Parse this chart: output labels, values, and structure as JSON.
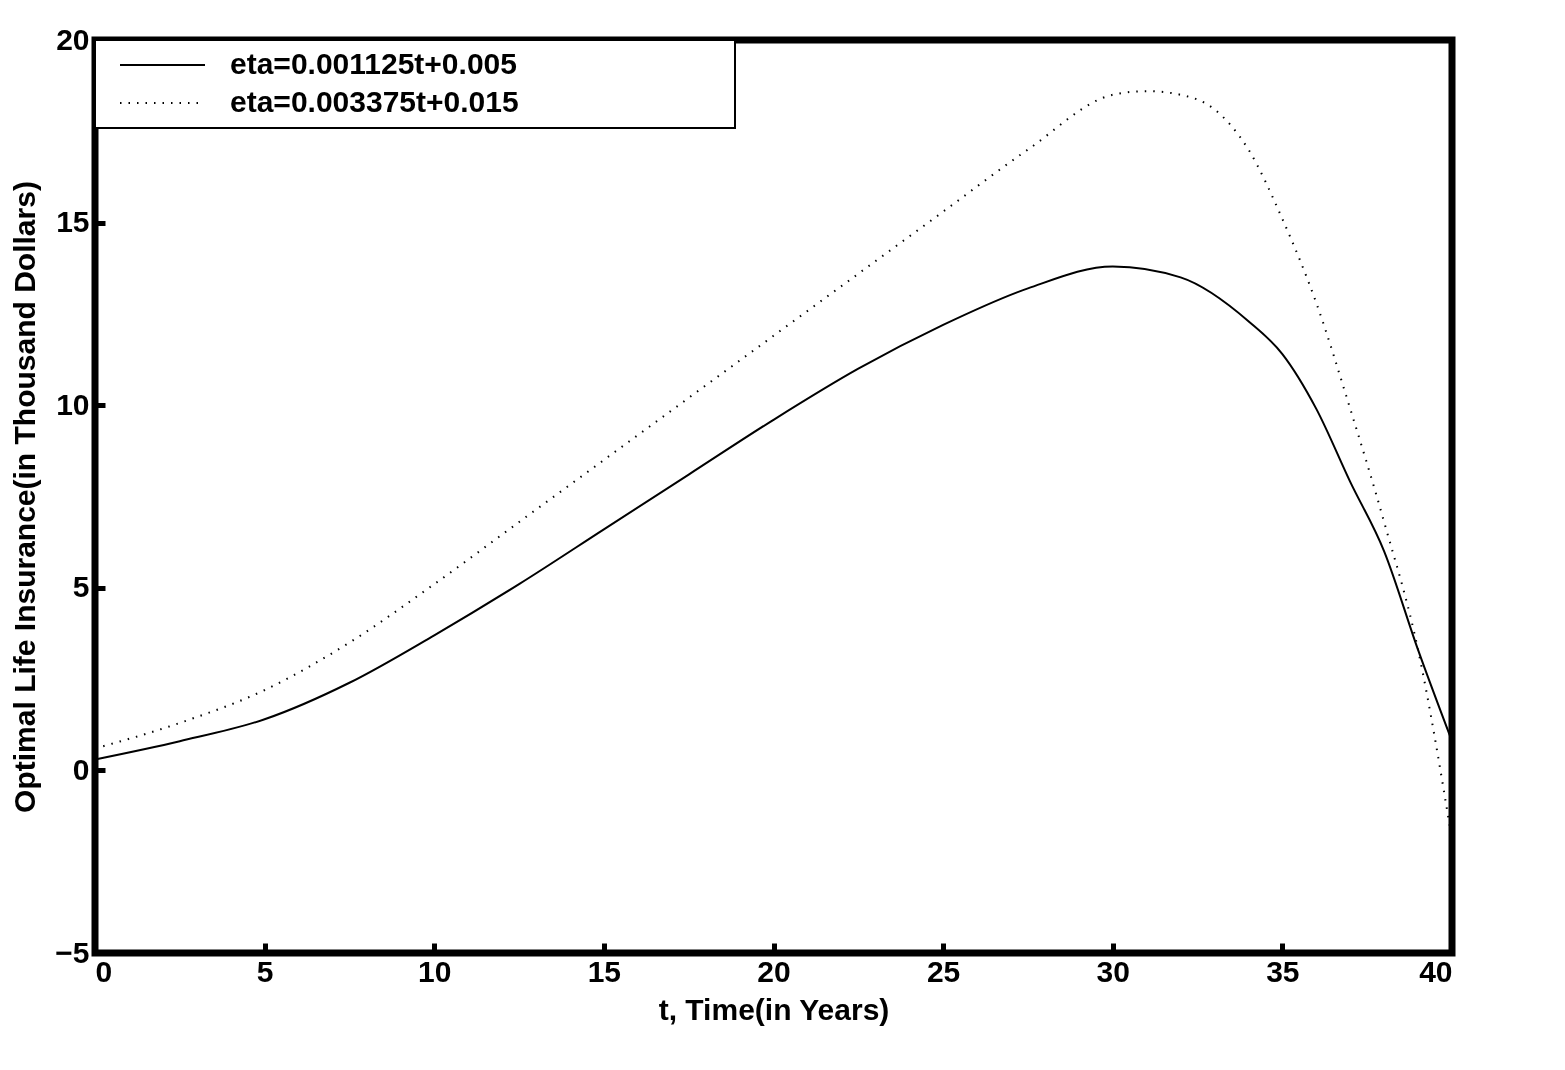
{
  "chart_data": {
    "type": "line",
    "xlabel": "t, Time(in Years)",
    "ylabel": "Optimal Life Insurance(in Thousand Dollars)",
    "x": [
      0,
      2.5,
      5,
      7.5,
      10,
      12.5,
      15,
      17.5,
      20,
      22.5,
      25,
      27.5,
      30,
      32,
      34,
      35,
      36,
      37,
      38,
      39,
      40
    ],
    "series": [
      {
        "name": "eta=0.001125t+0.005",
        "color": "#000000",
        "line_style": "solid",
        "values": [
          0.3,
          0.8,
          1.4,
          2.4,
          3.7,
          5.1,
          6.6,
          8.1,
          9.6,
          11.0,
          12.2,
          13.2,
          13.8,
          13.5,
          12.3,
          11.4,
          9.9,
          7.9,
          6.0,
          3.3,
          0.8
        ]
      },
      {
        "name": "eta=0.003375t+0.015",
        "color": "#000000",
        "line_style": "dotted",
        "x": [
          0,
          2.5,
          5,
          7.5,
          10,
          12.5,
          15,
          17.5,
          20,
          22.5,
          25,
          27.5,
          30,
          31,
          32,
          33,
          34,
          35,
          36,
          37,
          38,
          39,
          40
        ],
        "values": [
          0.6,
          1.3,
          2.2,
          3.5,
          5.1,
          6.8,
          8.5,
          10.2,
          11.9,
          13.6,
          15.3,
          17.0,
          18.5,
          18.6,
          18.5,
          18.1,
          17.0,
          15.1,
          12.8,
          9.9,
          6.8,
          3.3,
          -1.9
        ]
      }
    ],
    "xlim": [
      0,
      40
    ],
    "xticks": [
      0,
      5,
      10,
      15,
      20,
      25,
      30,
      35,
      40
    ],
    "ylim": [
      -5,
      20
    ],
    "yticks": [
      -5,
      0,
      5,
      10,
      15,
      20
    ],
    "grid": false,
    "legend": "top left",
    "marker": "none"
  }
}
